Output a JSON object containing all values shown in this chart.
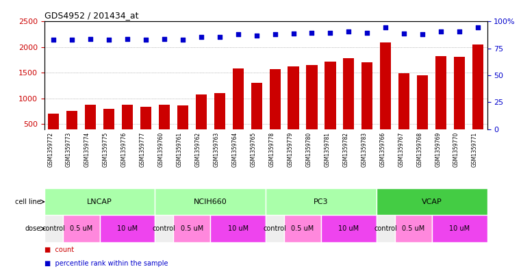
{
  "title": "GDS4952 / 201434_at",
  "samples": [
    "GSM1359772",
    "GSM1359773",
    "GSM1359774",
    "GSM1359775",
    "GSM1359776",
    "GSM1359777",
    "GSM1359760",
    "GSM1359761",
    "GSM1359762",
    "GSM1359763",
    "GSM1359764",
    "GSM1359765",
    "GSM1359778",
    "GSM1359779",
    "GSM1359780",
    "GSM1359781",
    "GSM1359782",
    "GSM1359783",
    "GSM1359766",
    "GSM1359767",
    "GSM1359768",
    "GSM1359769",
    "GSM1359770",
    "GSM1359771"
  ],
  "counts": [
    700,
    760,
    880,
    790,
    880,
    840,
    880,
    860,
    1080,
    1100,
    1580,
    1310,
    1570,
    1620,
    1650,
    1720,
    1780,
    1700,
    2090,
    1490,
    1450,
    1820,
    1810,
    2050
  ],
  "percentile_y": [
    2140,
    2140,
    2155,
    2150,
    2155,
    2150,
    2155,
    2150,
    2195,
    2195,
    2255,
    2230,
    2255,
    2270,
    2280,
    2285,
    2300,
    2280,
    2380,
    2270,
    2255,
    2300,
    2300,
    2390
  ],
  "cell_line_groups": [
    {
      "name": "LNCAP",
      "start": 0,
      "end": 5,
      "color": "#aaffaa"
    },
    {
      "name": "NCIH660",
      "start": 6,
      "end": 11,
      "color": "#aaffaa"
    },
    {
      "name": "PC3",
      "start": 12,
      "end": 17,
      "color": "#aaffaa"
    },
    {
      "name": "VCAP",
      "start": 18,
      "end": 23,
      "color": "#44cc44"
    }
  ],
  "dose_row": [
    {
      "label": "control",
      "start": 0,
      "end": 0,
      "color": "#eeeeee"
    },
    {
      "label": "0.5 uM",
      "start": 1,
      "end": 2,
      "color": "#ff88dd"
    },
    {
      "label": "10 uM",
      "start": 3,
      "end": 5,
      "color": "#ee44ee"
    },
    {
      "label": "control",
      "start": 6,
      "end": 6,
      "color": "#eeeeee"
    },
    {
      "label": "0.5 uM",
      "start": 7,
      "end": 8,
      "color": "#ff88dd"
    },
    {
      "label": "10 uM",
      "start": 9,
      "end": 11,
      "color": "#ee44ee"
    },
    {
      "label": "control",
      "start": 12,
      "end": 12,
      "color": "#eeeeee"
    },
    {
      "label": "0.5 uM",
      "start": 13,
      "end": 14,
      "color": "#ff88dd"
    },
    {
      "label": "10 uM",
      "start": 15,
      "end": 17,
      "color": "#ee44ee"
    },
    {
      "label": "control",
      "start": 18,
      "end": 18,
      "color": "#eeeeee"
    },
    {
      "label": "0.5 uM",
      "start": 19,
      "end": 20,
      "color": "#ff88dd"
    },
    {
      "label": "10 uM",
      "start": 21,
      "end": 23,
      "color": "#ee44ee"
    }
  ],
  "bar_color": "#CC0000",
  "dot_color": "#0000CC",
  "ylim": [
    400,
    2500
  ],
  "yticks_left": [
    500,
    1000,
    1500,
    2000,
    2500
  ],
  "yticks_right_labels": [
    "0",
    "25",
    "50",
    "75",
    "100%"
  ],
  "yticks_right_pct": [
    0,
    25,
    50,
    75,
    100
  ],
  "grid_color": "#888888",
  "axis_color_left": "#CC0000",
  "axis_color_right": "#0000CC",
  "xticklabel_bg": "#d8d8d8",
  "legend_count_color": "#CC0000",
  "legend_pct_color": "#0000CC"
}
